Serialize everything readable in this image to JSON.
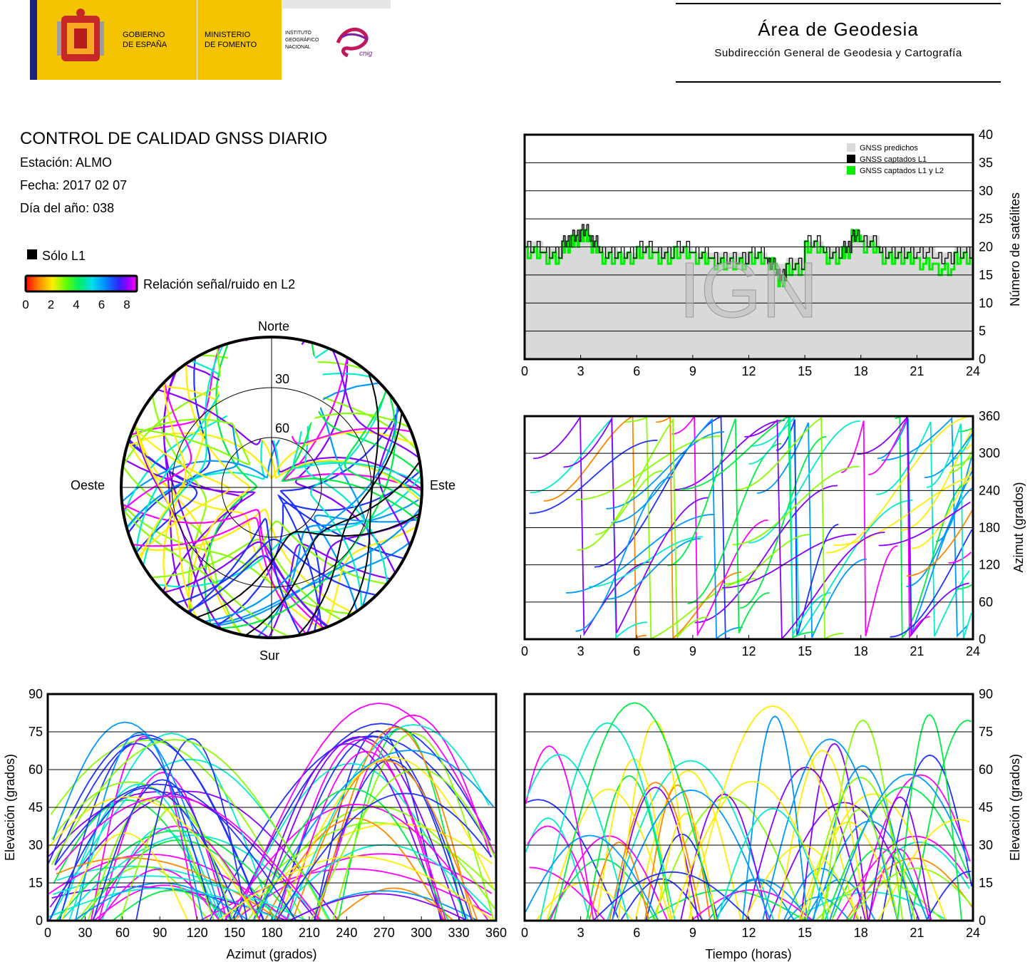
{
  "header": {
    "gov_line1": "GOBIERNO",
    "gov_line2": "DE ESPAÑA",
    "min_line1": "MINISTERIO",
    "min_line2": "DE FOMENTO",
    "inst_line1": "INSTITUTO",
    "inst_line2": "GEOGRÁFICO",
    "inst_line3": "NACIONAL",
    "logo_text": "cnig",
    "area_title": "Área de Geodesia",
    "area_subtitle": "Subdirección General de Geodesia y Cartografía"
  },
  "info": {
    "title": "CONTROL DE CALIDAD GNSS DIARIO",
    "station": "Estación: ALMO",
    "date": "Fecha: 2017 02 07",
    "doy": "Día del año: 038"
  },
  "legend": {
    "l1_only": "Sólo L1",
    "snr_label": "Relación señal/ruido en L2",
    "snr_ticks": [
      "0",
      "2",
      "4",
      "6",
      "8"
    ]
  },
  "watermark": "IGN",
  "colors": {
    "predicted": "#d9d9d9",
    "l1": "#000000",
    "l1l2": "#00ee00",
    "snr_scale": [
      "#ff0000",
      "#ff8800",
      "#ffee00",
      "#88ff00",
      "#00ee44",
      "#00eecc",
      "#0099ff",
      "#2233ff",
      "#8800ff",
      "#ff00ff"
    ]
  },
  "chart_data": [
    {
      "type": "area",
      "id": "satellites",
      "ylabel": "Número de satélites",
      "xlim": [
        0,
        24
      ],
      "ylim": [
        0,
        40
      ],
      "x_ticks": [
        "0",
        "3",
        "6",
        "9",
        "12",
        "15",
        "18",
        "21",
        "24"
      ],
      "y_ticks": [
        "0",
        "5",
        "10",
        "15",
        "20",
        "25",
        "30",
        "35",
        "40"
      ],
      "legend_position": "top-right",
      "series": [
        {
          "name": "GNSS predichos",
          "x": [
            0,
            1,
            2,
            2.5,
            3,
            3.5,
            4,
            5,
            6,
            7,
            8,
            9,
            10,
            11,
            12,
            13,
            13.5,
            14,
            15,
            16,
            17,
            17.5,
            18,
            19,
            20,
            21,
            22,
            23,
            24
          ],
          "values": [
            21,
            20,
            22,
            23,
            24,
            22,
            20,
            19,
            20,
            20,
            20,
            19,
            19,
            19,
            19,
            18,
            17,
            18,
            21,
            20,
            21,
            23,
            22,
            20,
            20,
            20,
            19,
            20,
            21
          ]
        },
        {
          "name": "GNSS captados L1",
          "x": [
            0,
            1,
            2,
            2.5,
            3,
            3.5,
            4,
            5,
            6,
            7,
            8,
            9,
            10,
            11,
            12,
            13,
            13.5,
            14,
            15,
            16,
            17,
            17.5,
            18,
            19,
            20,
            21,
            22,
            23,
            24
          ],
          "values": [
            20,
            19,
            21,
            22,
            23,
            21,
            19,
            19,
            20,
            19,
            20,
            19,
            18,
            18,
            19,
            17,
            15,
            17,
            21,
            19,
            20,
            22,
            21,
            19,
            19,
            19,
            18,
            19,
            20
          ]
        },
        {
          "name": "GNSS captados L1 y L2",
          "x": [
            0,
            1,
            2,
            2.5,
            3,
            3.5,
            4,
            5,
            6,
            7,
            8,
            9,
            10,
            11,
            12,
            13,
            13.5,
            14,
            15,
            16,
            17,
            17.5,
            18,
            19,
            20,
            21,
            22,
            23,
            24
          ],
          "values": [
            19,
            18,
            20,
            21,
            22,
            20,
            18,
            18,
            19,
            18,
            19,
            18,
            17,
            17,
            18,
            17,
            14,
            16,
            20,
            18,
            19,
            22,
            20,
            18,
            18,
            17,
            16,
            18,
            19
          ]
        }
      ]
    },
    {
      "type": "scatter",
      "id": "skyplot",
      "labels": {
        "north": "Norte",
        "south": "Sur",
        "east": "Este",
        "west": "Oeste"
      },
      "rings": [
        "30",
        "60"
      ]
    },
    {
      "type": "scatter",
      "id": "azimuth_time",
      "ylabel": "Azimut (grados)",
      "xlim": [
        0,
        24
      ],
      "ylim": [
        0,
        360
      ],
      "x_ticks": [
        "0",
        "3",
        "6",
        "9",
        "12",
        "15",
        "18",
        "21",
        "24"
      ],
      "y_ticks": [
        "0",
        "60",
        "120",
        "180",
        "240",
        "300",
        "360"
      ]
    },
    {
      "type": "scatter",
      "id": "elev_azimuth",
      "xlabel": "Azimut (grados)",
      "ylabel": "Elevación (grados)",
      "xlim": [
        0,
        360
      ],
      "ylim": [
        0,
        90
      ],
      "x_ticks": [
        "0",
        "30",
        "60",
        "90",
        "120",
        "150",
        "180",
        "210",
        "240",
        "270",
        "300",
        "330",
        "360"
      ],
      "y_ticks": [
        "0",
        "15",
        "30",
        "45",
        "60",
        "75",
        "90"
      ]
    },
    {
      "type": "scatter",
      "id": "elev_time",
      "xlabel": "Tiempo (horas)",
      "ylabel": "Elevación (grados)",
      "xlim": [
        0,
        24
      ],
      "ylim": [
        0,
        90
      ],
      "x_ticks": [
        "0",
        "3",
        "6",
        "9",
        "12",
        "15",
        "18",
        "21",
        "24"
      ],
      "y_ticks": [
        "0",
        "15",
        "30",
        "45",
        "60",
        "75",
        "90"
      ]
    }
  ]
}
